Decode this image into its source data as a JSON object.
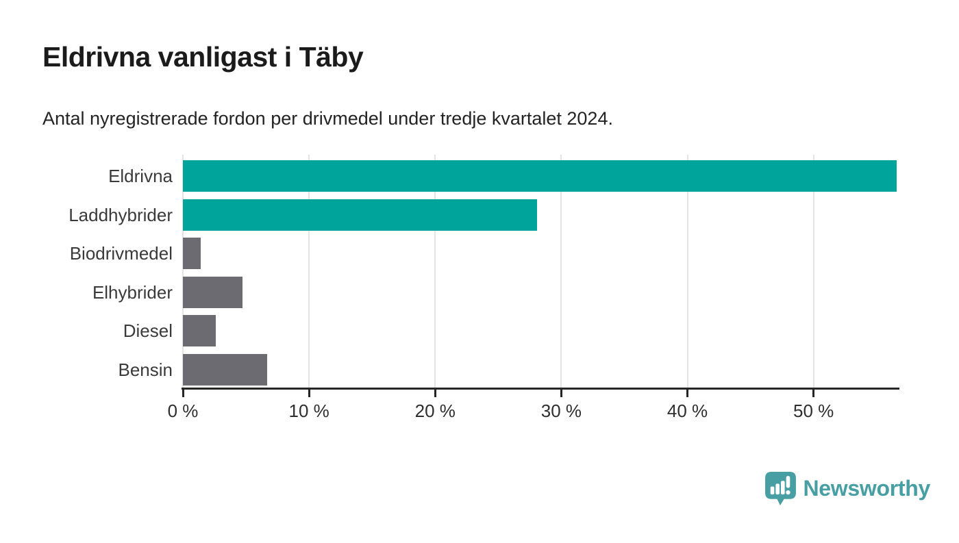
{
  "page": {
    "title": "Eldrivna vanligast i Täby",
    "subtitle": "Antal nyregistrerade fordon per drivmedel under tredje kvartalet 2024."
  },
  "chart_data": {
    "type": "bar",
    "orientation": "horizontal",
    "title": "Eldrivna vanligast i Täby",
    "subtitle": "Antal nyregistrerade fordon per drivmedel under tredje kvartalet 2024.",
    "categories": [
      "Eldrivna",
      "Laddhybrider",
      "Biodrivmedel",
      "Elhybrider",
      "Diesel",
      "Bensin"
    ],
    "values": [
      56.6,
      28.1,
      1.4,
      4.7,
      2.6,
      6.7
    ],
    "unit": "%",
    "bar_colors": [
      "#00a49a",
      "#00a49a",
      "#6b6b71",
      "#6b6b71",
      "#6b6b71",
      "#6b6b71"
    ],
    "xlabel": "",
    "ylabel": "",
    "xlim": [
      0,
      56.7
    ],
    "x_ticks": [
      0,
      10,
      20,
      30,
      40,
      50
    ],
    "x_tick_labels": [
      "0 %",
      "10 %",
      "20 %",
      "30 %",
      "40 %",
      "50 %"
    ],
    "grid": true,
    "legend": false
  },
  "branding": {
    "logo_text": "Newsworthy",
    "logo_color": "#479ea3",
    "logo_icon": "newsworthy-pin-bar-chart-icon"
  },
  "colors": {
    "highlight": "#00a49a",
    "neutral": "#6b6b71",
    "axis": "#262626",
    "grid": "#e4e4e4",
    "title_text": "#1b1b1b",
    "label_text": "#3a3a3a"
  }
}
